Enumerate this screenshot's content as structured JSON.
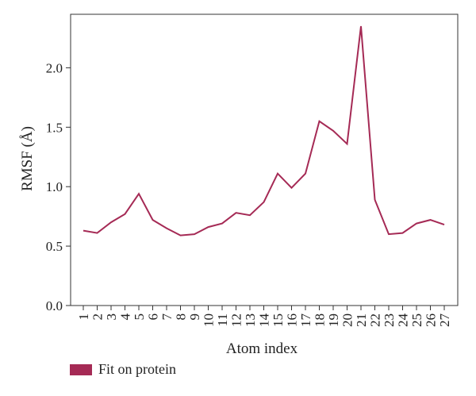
{
  "chart_data": {
    "type": "line",
    "xlabel": "Atom index",
    "ylabel": "RMSF (Å)",
    "x": [
      "1",
      "2",
      "3",
      "4",
      "5",
      "6",
      "7",
      "8",
      "9",
      "10",
      "11",
      "12",
      "13",
      "14",
      "15",
      "16",
      "17",
      "18",
      "19",
      "20",
      "21",
      "22",
      "23",
      "24",
      "25",
      "26",
      "27"
    ],
    "series": [
      {
        "name": "Fit on protein",
        "color": "#a52a55",
        "values": [
          0.63,
          0.61,
          0.7,
          0.77,
          0.94,
          0.72,
          0.65,
          0.59,
          0.6,
          0.66,
          0.69,
          0.78,
          0.76,
          0.87,
          1.11,
          0.99,
          1.11,
          1.55,
          1.47,
          1.36,
          2.35,
          0.89,
          0.6,
          0.61,
          0.69,
          0.72,
          0.68
        ]
      }
    ],
    "ylim": [
      0.0,
      2.45
    ],
    "yticks": [
      "0.0",
      "0.5",
      "1.0",
      "1.5",
      "2.0"
    ],
    "grid": false,
    "legend_position": "bottom-left"
  }
}
